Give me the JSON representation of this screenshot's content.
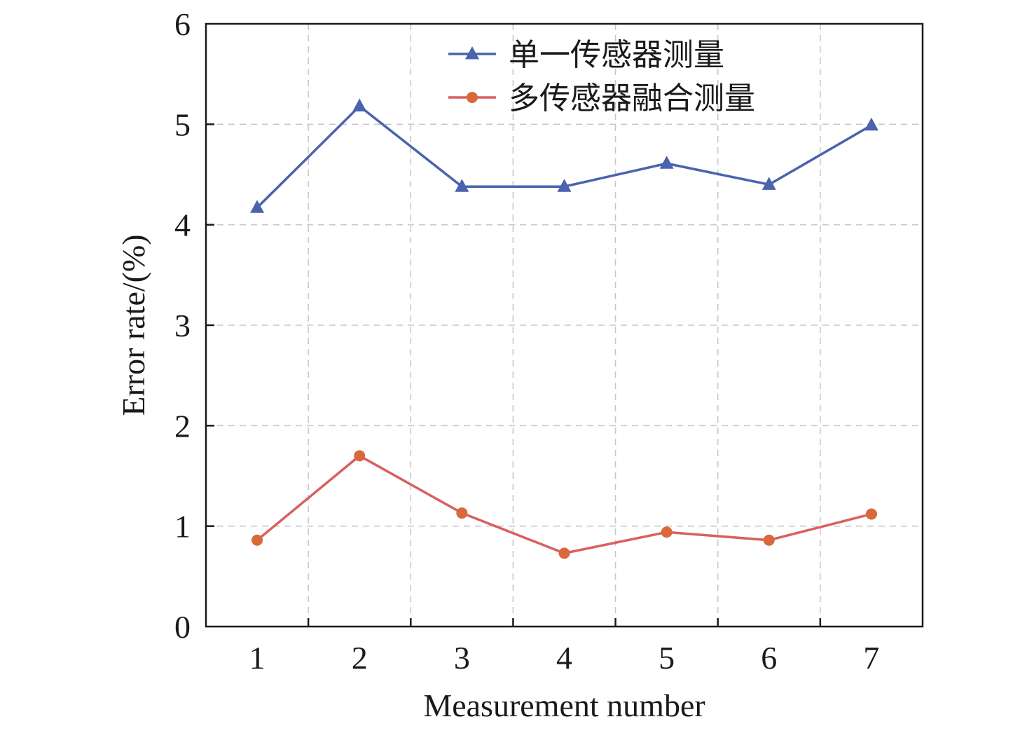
{
  "chart_data": {
    "type": "line",
    "title": "",
    "xlabel": "Measurement number",
    "ylabel": "Error rate/(%)",
    "x": [
      1,
      2,
      3,
      4,
      5,
      6,
      7
    ],
    "xlim": [
      0.5,
      7.5
    ],
    "ylim": [
      0,
      6
    ],
    "yticks": [
      0,
      1,
      2,
      3,
      4,
      5,
      6
    ],
    "grid": true,
    "legend_position": "top-right",
    "series": [
      {
        "name": "单一传感器测量",
        "values": [
          4.17,
          5.18,
          4.38,
          4.38,
          4.61,
          4.4,
          4.99
        ],
        "color": "#4a63ad",
        "marker": "triangle"
      },
      {
        "name": "多传感器融合测量",
        "values": [
          0.86,
          1.7,
          1.13,
          0.73,
          0.94,
          0.86,
          1.12
        ],
        "color": "#d96060",
        "marker_color": "#d9693a",
        "marker": "circle"
      }
    ]
  }
}
